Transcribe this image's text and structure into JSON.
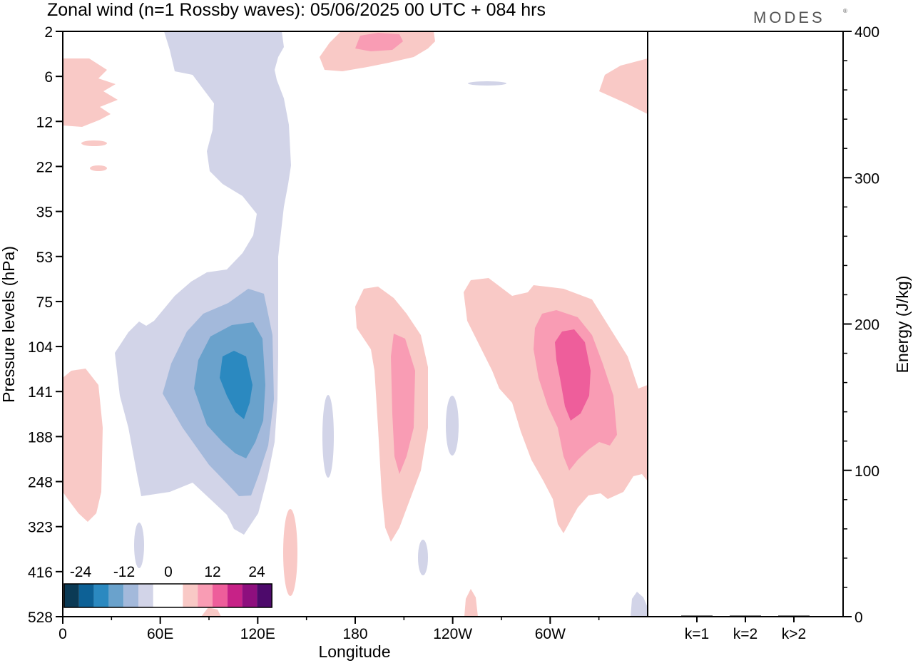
{
  "chart_data": [
    {
      "type": "heatmap",
      "title": "Zonal wind (n=1 Rossby waves):  05/06/2025  00 UTC  + 084 hrs",
      "xlabel": "Longitude",
      "ylabel": "Pressure levels (hPa)",
      "x_ticks": [
        "0",
        "60E",
        "120E",
        "180",
        "120W",
        "60W"
      ],
      "y_ticks": [
        "2",
        "6",
        "12",
        "22",
        "35",
        "53",
        "75",
        "104",
        "141",
        "188",
        "248",
        "323",
        "416",
        "528"
      ],
      "colorbar": {
        "labels": [
          "-24",
          "-12",
          "0",
          "12",
          "24"
        ],
        "bin_colors": [
          "#0b3a55",
          "#0d6196",
          "#2b89c0",
          "#6aa2cc",
          "#a3b9db",
          "#d2d4e8",
          "#ffffff",
          "#ffffff",
          "#f9c9c6",
          "#f99cb4",
          "#ee5e9b",
          "#c72287",
          "#8e0f7e",
          "#4d0a6b"
        ]
      },
      "regions": [
        {
          "name": "stratospheric-column",
          "sign": "negative",
          "level": 1,
          "lon": [
            33,
            125
          ],
          "p_top": 2,
          "p_bottom": 323
        },
        {
          "name": "easterly-core",
          "sign": "negative",
          "level": 4,
          "lon": [
            95,
            118
          ],
          "p_top": 110,
          "p_bottom": 180
        },
        {
          "name": "westerly-core-dateline",
          "sign": "positive",
          "level": 2,
          "lon": [
            195,
            210
          ],
          "p_top": 120,
          "p_bottom": 230
        },
        {
          "name": "westerly-core-60W",
          "sign": "positive",
          "level": 3,
          "lon": [
            295,
            320
          ],
          "p_top": 118,
          "p_bottom": 180
        }
      ]
    },
    {
      "type": "bar",
      "categories": [
        "k=1",
        "k=2",
        "k>2"
      ],
      "values": [
        0.5,
        0.3,
        0.4
      ],
      "ylabel": "Energy (J/kg)",
      "ylim": [
        0,
        400
      ],
      "y_ticks": [
        "0",
        "100",
        "200",
        "300",
        "400"
      ]
    }
  ],
  "branding": {
    "logo": "MODES"
  }
}
